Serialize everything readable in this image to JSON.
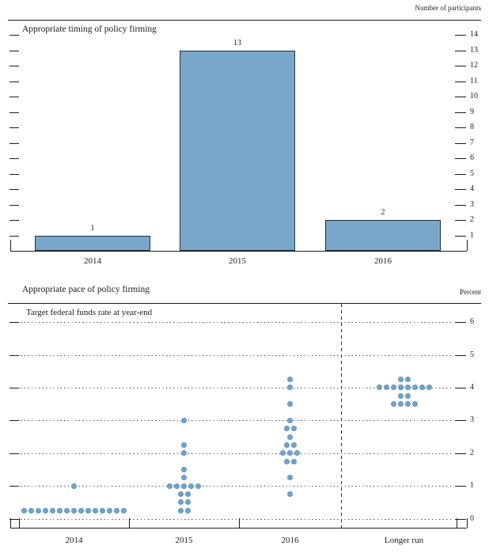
{
  "chart_data": [
    {
      "type": "bar",
      "title": "Appropriate timing of policy firming",
      "right_axis_label": "Number of participants",
      "categories": [
        "2014",
        "2015",
        "2016"
      ],
      "values": [
        1,
        13,
        2
      ],
      "bar_value_labels": [
        "1",
        "13",
        "2"
      ],
      "ylim": [
        0,
        14
      ],
      "y_ticks": [
        1,
        2,
        3,
        4,
        5,
        6,
        7,
        8,
        9,
        10,
        11,
        12,
        13,
        14
      ],
      "grid": "off",
      "bar_color": "#79a7cc",
      "bar_border_color": "#22303c"
    },
    {
      "type": "scatter",
      "subtype": "dot-plot",
      "title": "Appropriate pace of policy firming",
      "right_axis_label": "Percent",
      "inner_label": "Target federal funds rate at year-end",
      "categories": [
        "2014",
        "2015",
        "2016",
        "Longer run"
      ],
      "separator_before_category": "Longer run",
      "ylim": [
        0,
        6
      ],
      "y_ticks": [
        0,
        1,
        2,
        3,
        4,
        5,
        6
      ],
      "grid": "dotted-horizontal",
      "dot_color": "#72a4ca",
      "series": [
        {
          "category": "2014",
          "points": [
            {
              "value": 0.25,
              "count": 15
            },
            {
              "value": 1.0,
              "count": 1
            }
          ]
        },
        {
          "category": "2015",
          "points": [
            {
              "value": 0.25,
              "count": 2
            },
            {
              "value": 0.5,
              "count": 2
            },
            {
              "value": 0.75,
              "count": 2
            },
            {
              "value": 1.0,
              "count": 5
            },
            {
              "value": 1.25,
              "count": 1
            },
            {
              "value": 1.5,
              "count": 1
            },
            {
              "value": 2.0,
              "count": 1
            },
            {
              "value": 2.25,
              "count": 1
            },
            {
              "value": 3.0,
              "count": 1
            }
          ]
        },
        {
          "category": "2016",
          "points": [
            {
              "value": 0.75,
              "count": 1
            },
            {
              "value": 1.25,
              "count": 1
            },
            {
              "value": 1.75,
              "count": 2
            },
            {
              "value": 2.0,
              "count": 3
            },
            {
              "value": 2.25,
              "count": 2
            },
            {
              "value": 2.5,
              "count": 1
            },
            {
              "value": 2.75,
              "count": 2
            },
            {
              "value": 3.0,
              "count": 1
            },
            {
              "value": 3.5,
              "count": 1
            },
            {
              "value": 4.0,
              "count": 1
            },
            {
              "value": 4.25,
              "count": 1
            }
          ]
        },
        {
          "category": "Longer run",
          "points": [
            {
              "value": 3.5,
              "count": 4
            },
            {
              "value": 3.75,
              "count": 2
            },
            {
              "value": 4.0,
              "count": 8
            },
            {
              "value": 4.25,
              "count": 2
            }
          ]
        }
      ]
    }
  ]
}
